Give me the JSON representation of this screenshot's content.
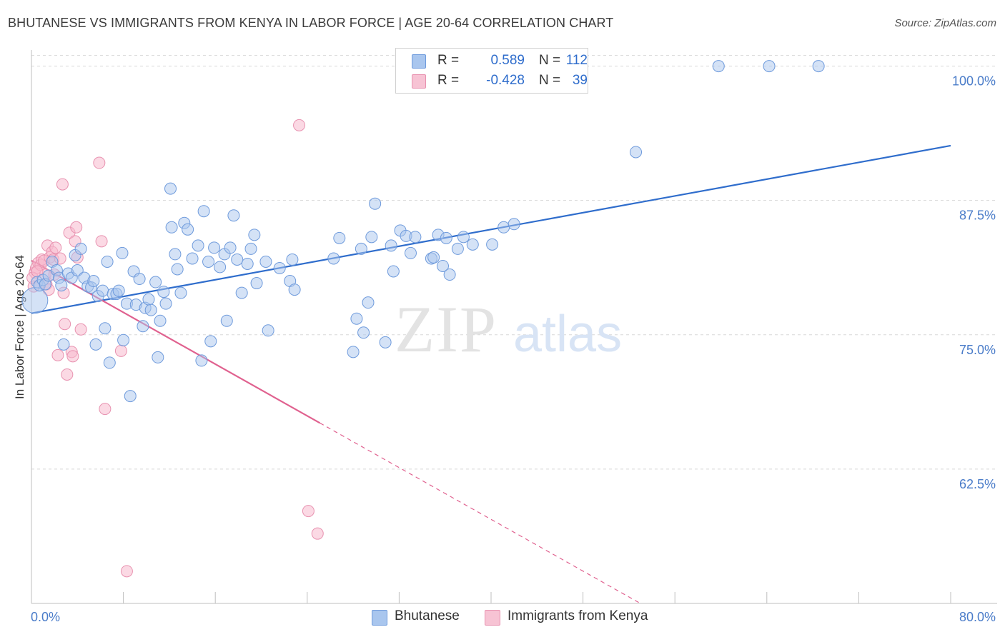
{
  "title": "BHUTANESE VS IMMIGRANTS FROM KENYA IN LABOR FORCE | AGE 20-64 CORRELATION CHART",
  "source": "Source: ZipAtlas.com",
  "watermark": {
    "zip": "ZIP",
    "atlas": "atlas"
  },
  "colors": {
    "blue": "#2f6dcc",
    "blue_fill": "#a9c6ee",
    "pink": "#e0618f",
    "pink_fill": "#f7b9cd",
    "grid": "#d8d8d8",
    "tick_text": "#4a7cc9"
  },
  "legend": {
    "rows": [
      {
        "r_label": "R =",
        "r_value": "0.589",
        "n_label": "N =",
        "n_value": "112"
      },
      {
        "r_label": "R =",
        "r_value": "-0.428",
        "n_label": "N =",
        "n_value": "39"
      }
    ]
  },
  "bottom_legend": {
    "series1": "Bhutanese",
    "series2": "Immigrants from Kenya"
  },
  "chart_data": {
    "type": "scatter",
    "title": "BHUTANESE VS IMMIGRANTS FROM KENYA IN LABOR FORCE | AGE 20-64 CORRELATION CHART",
    "ylabel": "In Labor Force | Age 20-64",
    "xlabel": "",
    "xlim": [
      0,
      80
    ],
    "ylim": [
      50,
      101.5
    ],
    "x_tick_labels": [
      "0.0%",
      "80.0%"
    ],
    "y_ticks": [
      62.5,
      75.0,
      87.5,
      100.0
    ],
    "y_tick_labels": [
      "62.5%",
      "75.0%",
      "87.5%",
      "100.0%"
    ],
    "grid": true,
    "legend_position": "top-center",
    "series": [
      {
        "name": "Bhutanese",
        "color": "#2f6dcc",
        "R": 0.589,
        "N": 112,
        "trend": {
          "x": [
            0,
            80
          ],
          "y": [
            77.0,
            92.6
          ],
          "dashed_from": null
        },
        "points": [
          [
            0.3,
            78.2
          ],
          [
            0.5,
            79.9
          ],
          [
            0.7,
            79.6
          ],
          [
            1.0,
            80.1
          ],
          [
            1.2,
            79.7
          ],
          [
            1.5,
            80.5
          ],
          [
            1.8,
            81.8
          ],
          [
            2.2,
            81.0
          ],
          [
            2.4,
            80.3
          ],
          [
            2.6,
            79.6
          ],
          [
            2.8,
            74.1
          ],
          [
            3.2,
            80.7
          ],
          [
            3.5,
            80.3
          ],
          [
            3.8,
            82.4
          ],
          [
            4.0,
            81.0
          ],
          [
            4.3,
            83.0
          ],
          [
            4.6,
            80.3
          ],
          [
            4.9,
            79.5
          ],
          [
            5.2,
            79.4
          ],
          [
            5.4,
            80.0
          ],
          [
            5.6,
            74.1
          ],
          [
            5.8,
            78.6
          ],
          [
            6.2,
            79.1
          ],
          [
            6.4,
            75.6
          ],
          [
            6.6,
            81.8
          ],
          [
            6.8,
            72.4
          ],
          [
            7.1,
            78.8
          ],
          [
            7.4,
            78.8
          ],
          [
            7.6,
            79.1
          ],
          [
            7.9,
            82.6
          ],
          [
            8.0,
            74.5
          ],
          [
            8.3,
            77.9
          ],
          [
            8.6,
            69.3
          ],
          [
            8.9,
            80.9
          ],
          [
            9.1,
            77.8
          ],
          [
            9.4,
            80.2
          ],
          [
            9.7,
            75.8
          ],
          [
            9.9,
            77.5
          ],
          [
            10.2,
            78.3
          ],
          [
            10.4,
            77.3
          ],
          [
            10.8,
            79.9
          ],
          [
            11.0,
            72.9
          ],
          [
            11.2,
            76.3
          ],
          [
            11.5,
            79.0
          ],
          [
            11.7,
            77.9
          ],
          [
            12.1,
            88.6
          ],
          [
            12.2,
            85.0
          ],
          [
            12.5,
            82.5
          ],
          [
            12.7,
            81.1
          ],
          [
            13.0,
            78.9
          ],
          [
            13.3,
            85.4
          ],
          [
            13.6,
            84.8
          ],
          [
            14.0,
            82.1
          ],
          [
            14.5,
            83.3
          ],
          [
            14.8,
            72.6
          ],
          [
            15.0,
            86.5
          ],
          [
            15.4,
            81.8
          ],
          [
            15.6,
            74.4
          ],
          [
            15.9,
            83.1
          ],
          [
            16.4,
            81.3
          ],
          [
            16.8,
            82.5
          ],
          [
            17.0,
            76.3
          ],
          [
            17.3,
            83.1
          ],
          [
            17.6,
            86.1
          ],
          [
            17.9,
            82.0
          ],
          [
            18.3,
            78.9
          ],
          [
            18.8,
            81.6
          ],
          [
            19.1,
            83.0
          ],
          [
            19.4,
            84.3
          ],
          [
            19.6,
            79.8
          ],
          [
            20.4,
            81.8
          ],
          [
            20.6,
            75.4
          ],
          [
            21.6,
            81.2
          ],
          [
            22.5,
            80.0
          ],
          [
            22.7,
            82.0
          ],
          [
            22.9,
            79.2
          ],
          [
            26.3,
            82.1
          ],
          [
            26.8,
            84.0
          ],
          [
            28.0,
            73.4
          ],
          [
            28.3,
            76.5
          ],
          [
            28.7,
            83.0
          ],
          [
            28.9,
            75.2
          ],
          [
            29.3,
            78.0
          ],
          [
            29.6,
            84.1
          ],
          [
            29.9,
            87.2
          ],
          [
            30.8,
            74.3
          ],
          [
            31.3,
            83.3
          ],
          [
            31.5,
            80.9
          ],
          [
            32.1,
            84.7
          ],
          [
            32.6,
            84.2
          ],
          [
            33.0,
            82.6
          ],
          [
            33.4,
            84.1
          ],
          [
            34.8,
            82.1
          ],
          [
            35.0,
            82.2
          ],
          [
            35.4,
            84.3
          ],
          [
            35.8,
            81.4
          ],
          [
            36.1,
            84.0
          ],
          [
            36.4,
            80.6
          ],
          [
            37.1,
            83.0
          ],
          [
            37.6,
            84.1
          ],
          [
            38.4,
            83.4
          ],
          [
            40.1,
            83.4
          ],
          [
            41.1,
            85.0
          ],
          [
            42.0,
            85.3
          ],
          [
            52.6,
            92.0
          ],
          [
            59.8,
            100.0
          ],
          [
            64.2,
            100.0
          ],
          [
            68.5,
            100.0
          ]
        ]
      },
      {
        "name": "Immigrants from Kenya",
        "color": "#e0618f",
        "R": -0.428,
        "N": 39,
        "trend": {
          "x": [
            0,
            53.0
          ],
          "y": [
            81.9,
            50.0
          ],
          "dashed_from": 25.1
        },
        "points": [
          [
            0.2,
            79.5
          ],
          [
            0.3,
            80.8
          ],
          [
            0.4,
            81.2
          ],
          [
            0.6,
            81.7
          ],
          [
            0.8,
            81.5
          ],
          [
            0.9,
            82.0
          ],
          [
            1.1,
            81.9
          ],
          [
            1.2,
            80.6
          ],
          [
            1.3,
            79.7
          ],
          [
            1.4,
            83.3
          ],
          [
            1.5,
            79.2
          ],
          [
            1.6,
            82.2
          ],
          [
            1.8,
            82.7
          ],
          [
            1.9,
            82.0
          ],
          [
            2.0,
            80.6
          ],
          [
            2.1,
            83.1
          ],
          [
            2.3,
            73.1
          ],
          [
            2.5,
            82.1
          ],
          [
            2.7,
            89.0
          ],
          [
            2.8,
            78.9
          ],
          [
            2.9,
            76.0
          ],
          [
            3.1,
            71.3
          ],
          [
            3.3,
            84.5
          ],
          [
            3.5,
            73.4
          ],
          [
            3.6,
            73.0
          ],
          [
            3.8,
            83.7
          ],
          [
            3.9,
            85.0
          ],
          [
            4.0,
            82.2
          ],
          [
            4.3,
            75.5
          ],
          [
            5.9,
            91.0
          ],
          [
            6.1,
            83.7
          ],
          [
            6.4,
            68.1
          ],
          [
            7.8,
            73.5
          ],
          [
            8.3,
            53.0
          ],
          [
            23.3,
            94.5
          ],
          [
            24.1,
            58.6
          ],
          [
            24.9,
            56.5
          ],
          [
            0.1,
            80.3
          ],
          [
            0.5,
            80.9
          ]
        ]
      }
    ]
  }
}
